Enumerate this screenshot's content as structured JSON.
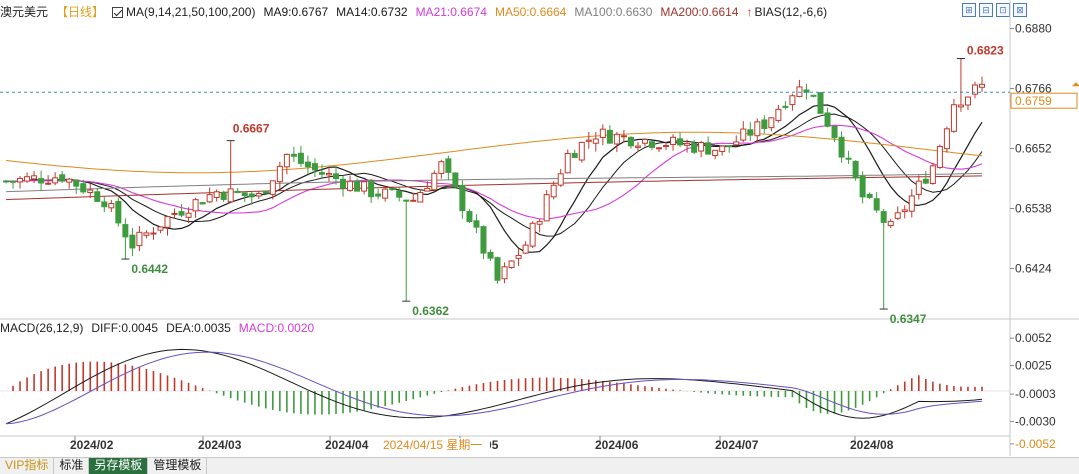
{
  "instrument": "澳元美元",
  "period": "【日线】",
  "ma": {
    "title": "MA(9,14,21,50,100,200)",
    "items": [
      {
        "label": "MA9:0.6767",
        "color": "#1a1a1a"
      },
      {
        "label": "MA14:0.6732",
        "color": "#1a1a1a"
      },
      {
        "label": "MA21:0.6674",
        "color": "#d53bd8"
      },
      {
        "label": "MA50:0.6664",
        "color": "#e08a1c"
      },
      {
        "label": "MA100:0.6630",
        "color": "#808080"
      },
      {
        "label": "MA200:0.6614",
        "color": "#a0342c"
      }
    ],
    "bias": "BIAS(12,-6,6)"
  },
  "price_axis": {
    "ticks": [
      "0.6880",
      "0.6766",
      "0.6652",
      "0.6538",
      "0.6424"
    ],
    "current": "0.6759"
  },
  "annotations": {
    "high_mar": "0.6667",
    "low_feb": "0.6442",
    "low_apr": "0.6362",
    "low_aug": "0.6347",
    "high_aug": "0.6823"
  },
  "macd": {
    "title": "MACD(26,12,9)",
    "diff": "DIFF:0.0045",
    "dea": "DEA:0.0035",
    "macd": "MACD:0.0020",
    "ticks": [
      "0.0052",
      "0.0025",
      "-0.0003",
      "-0.0030",
      "-0.0052"
    ]
  },
  "time_axis": {
    "labels": [
      "2024/02",
      "2024/03",
      "2024/04",
      "2024/05",
      "2024/06",
      "2024/07",
      "2024/08"
    ],
    "hover": "2024/04/15 星期一"
  },
  "tabs": [
    "VIP指标",
    "标准",
    "另存模板",
    "管理模板"
  ],
  "colors": {
    "up": "#c0392b",
    "down": "#3f9b3f",
    "diff_line": "#1a1a1a",
    "dea_line": "#6a4fc0",
    "grid": "#d6d6d6",
    "price_line": "#2a8bd0",
    "axis_text": "#333333"
  },
  "chart_data": {
    "type": "candlestick",
    "ylim": [
      0.633,
      0.69
    ],
    "xlabels": [
      "2024/02",
      "2024/03",
      "2024/04",
      "2024/05",
      "2024/06",
      "2024/07",
      "2024/08"
    ],
    "series_names": [
      "MA9",
      "MA14",
      "MA21",
      "MA50",
      "MA100",
      "MA200"
    ],
    "last_price": 0.6759,
    "macd_ylim": [
      -0.0058,
      0.0058
    ]
  }
}
